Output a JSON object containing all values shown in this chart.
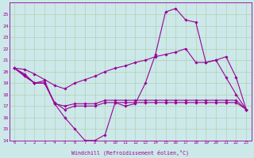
{
  "xlabel": "Windchill (Refroidissement éolien,°C)",
  "bg_color": "#cce8e8",
  "grid_color": "#aaccaa",
  "line_color": "#990099",
  "xlim": [
    -0.5,
    23.5
  ],
  "ylim": [
    14,
    26
  ],
  "yticks": [
    14,
    15,
    16,
    17,
    18,
    19,
    20,
    21,
    22,
    23,
    24,
    25
  ],
  "xticks": [
    0,
    1,
    2,
    3,
    4,
    5,
    6,
    7,
    8,
    9,
    10,
    11,
    12,
    13,
    14,
    15,
    16,
    17,
    18,
    19,
    20,
    21,
    22,
    23
  ],
  "series": [
    [
      20.3,
      19.8,
      19.0,
      19.2,
      17.2,
      16.0,
      15.0,
      14.0,
      14.0,
      14.5,
      17.3,
      17.0,
      17.2,
      19.0,
      21.5,
      25.2,
      25.5,
      24.5,
      24.3,
      20.8,
      21.0,
      19.5,
      18.0,
      16.7
    ],
    [
      20.3,
      19.7,
      19.0,
      19.0,
      17.3,
      16.7,
      17.0,
      17.0,
      17.0,
      17.3,
      17.3,
      17.3,
      17.3,
      17.3,
      17.3,
      17.3,
      17.3,
      17.3,
      17.3,
      17.3,
      17.3,
      17.3,
      17.3,
      16.7
    ],
    [
      20.3,
      20.2,
      19.8,
      19.3,
      18.8,
      18.5,
      19.0,
      19.3,
      19.6,
      20.0,
      20.3,
      20.5,
      20.8,
      21.0,
      21.3,
      21.5,
      21.7,
      22.0,
      20.8,
      20.8,
      21.0,
      21.3,
      19.5,
      16.7
    ],
    [
      20.3,
      19.6,
      19.0,
      19.0,
      17.2,
      17.0,
      17.2,
      17.2,
      17.2,
      17.5,
      17.5,
      17.5,
      17.5,
      17.5,
      17.5,
      17.5,
      17.5,
      17.5,
      17.5,
      17.5,
      17.5,
      17.5,
      17.5,
      16.7
    ]
  ]
}
